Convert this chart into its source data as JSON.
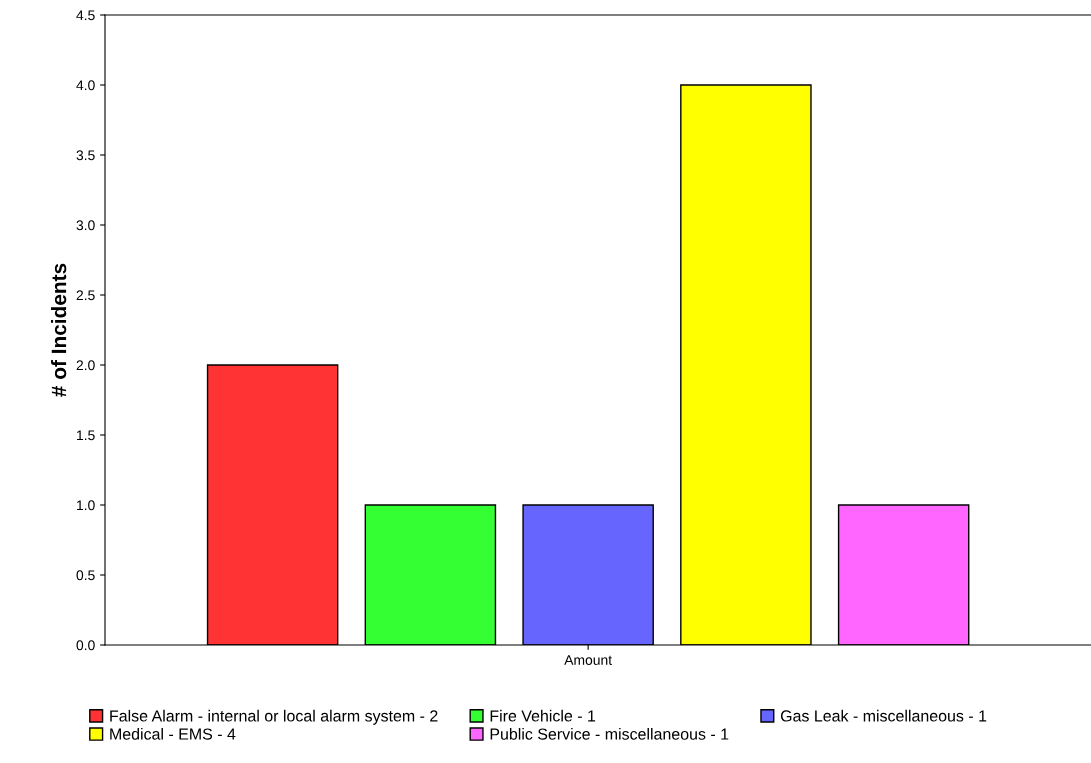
{
  "chart_data": {
    "type": "bar",
    "ylabel": "# of Incidents",
    "categories": [
      "Amount"
    ],
    "series": [
      {
        "name": "False Alarm - internal or local alarm system - 2",
        "color": "#ff3333",
        "values": [
          2
        ]
      },
      {
        "name": "Fire Vehicle - 1",
        "color": "#33ff33",
        "values": [
          1
        ]
      },
      {
        "name": "Gas Leak - miscellaneous - 1",
        "color": "#6666ff",
        "values": [
          1
        ]
      },
      {
        "name": "Medical - EMS - 4",
        "color": "#ffff00",
        "values": [
          4
        ]
      },
      {
        "name": "Public Service - miscellaneous - 1",
        "color": "#ff66ff",
        "values": [
          1
        ]
      }
    ],
    "ylim": [
      0,
      4.5
    ],
    "yticks": [
      {
        "value": 0,
        "label": "0.0"
      },
      {
        "value": 0.5,
        "label": "0.5"
      },
      {
        "value": 1,
        "label": "1.0"
      },
      {
        "value": 1.5,
        "label": "1.5"
      },
      {
        "value": 2,
        "label": "2.0"
      },
      {
        "value": 2.5,
        "label": "2.5"
      },
      {
        "value": 3,
        "label": "3.0"
      },
      {
        "value": 3.5,
        "label": "3.5"
      },
      {
        "value": 4,
        "label": "4.0"
      },
      {
        "value": 4.5,
        "label": "4.5"
      }
    ],
    "grid": false,
    "legend": "bottom"
  }
}
